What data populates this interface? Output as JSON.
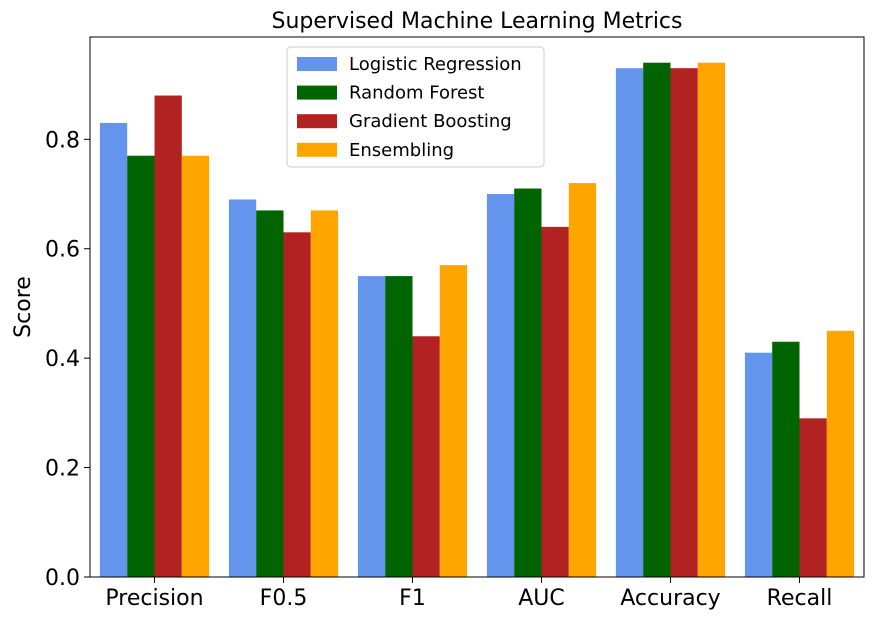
{
  "chart_data": {
    "type": "bar",
    "title": "Supervised Machine Learning Metrics",
    "xlabel": "",
    "ylabel": "Score",
    "categories": [
      "Precision",
      "F0.5",
      "F1",
      "AUC",
      "Accuracy",
      "Recall"
    ],
    "series": [
      {
        "name": "Logistic Regression",
        "color": "#6495ED",
        "values": [
          0.83,
          0.69,
          0.55,
          0.7,
          0.93,
          0.41
        ]
      },
      {
        "name": "Random Forest",
        "color": "#006400",
        "values": [
          0.77,
          0.67,
          0.55,
          0.71,
          0.94,
          0.43
        ]
      },
      {
        "name": "Gradient Boosting",
        "color": "#B22222",
        "values": [
          0.88,
          0.63,
          0.44,
          0.64,
          0.93,
          0.29
        ]
      },
      {
        "name": "Ensembling",
        "color": "#FFA500",
        "values": [
          0.77,
          0.67,
          0.57,
          0.72,
          0.94,
          0.45
        ]
      }
    ],
    "ylim": [
      0,
      0.987
    ],
    "yticks": [
      "0.0",
      "0.2",
      "0.4",
      "0.6",
      "0.8"
    ],
    "grid": false,
    "legend_position": "top-center"
  }
}
